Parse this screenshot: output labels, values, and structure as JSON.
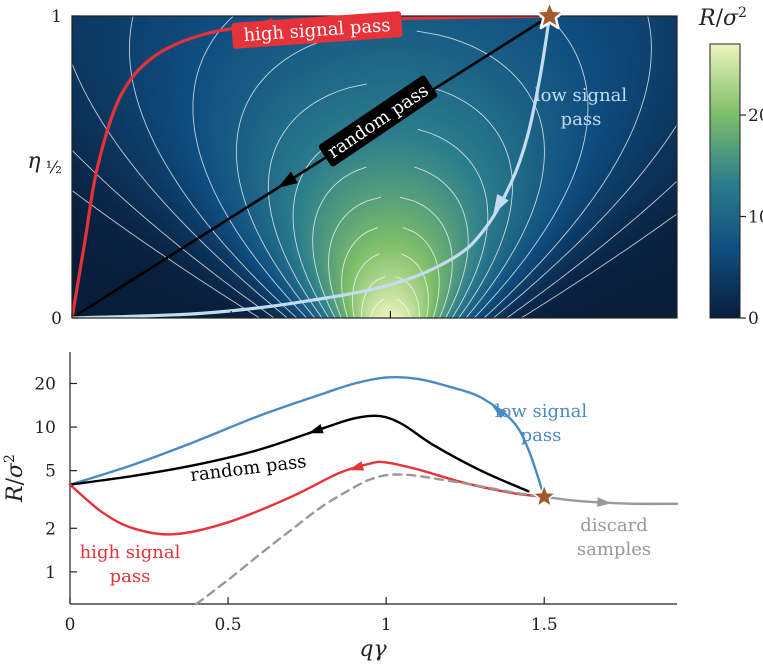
{
  "chart_data": [
    {
      "type": "heatmap",
      "title": "",
      "xlabel": "",
      "ylabel": "η",
      "xlim": [
        0,
        1.9
      ],
      "ylim": [
        0,
        1
      ],
      "x_ticks": [
        0,
        0.5,
        1,
        1.5
      ],
      "y_ticks": [
        {
          "value": 0,
          "label": "0"
        },
        {
          "value": 0.5,
          "label": "½"
        },
        {
          "value": 1,
          "label": "1"
        }
      ],
      "grid": false,
      "colorbar": {
        "label": "R/σ²",
        "range": [
          0,
          27
        ],
        "ticks": [
          0,
          10,
          20
        ],
        "colors": [
          "#081d3a",
          "#0f4d80",
          "#2e7f8d",
          "#7fbf6a",
          "#eef4bf"
        ]
      },
      "peak": {
        "x": 1.0,
        "y": 0.0,
        "value": 27
      },
      "start_point": {
        "x": 1.5,
        "y": 1.0,
        "marker": "star",
        "color": "#a05a2c"
      },
      "paths": [
        {
          "name": "high signal pass",
          "color": "#e63238",
          "points": [
            [
              1.5,
              1.0
            ],
            [
              1.2,
              0.995
            ],
            [
              0.9,
              0.988
            ],
            [
              0.6,
              0.97
            ],
            [
              0.4,
              0.935
            ],
            [
              0.25,
              0.86
            ],
            [
              0.15,
              0.73
            ],
            [
              0.08,
              0.5
            ],
            [
              0.04,
              0.25
            ],
            [
              0.0,
              0.0
            ]
          ]
        },
        {
          "name": "random pass",
          "color": "#000000",
          "points": [
            [
              1.5,
              1.0
            ],
            [
              0.0,
              0.0
            ]
          ]
        },
        {
          "name": "low signal pass",
          "color": "#c3dcf0",
          "points": [
            [
              1.5,
              1.0
            ],
            [
              1.47,
              0.8
            ],
            [
              1.43,
              0.6
            ],
            [
              1.38,
              0.45
            ],
            [
              1.3,
              0.3
            ],
            [
              1.2,
              0.2
            ],
            [
              1.0,
              0.11
            ],
            [
              0.7,
              0.05
            ],
            [
              0.4,
              0.015
            ],
            [
              0.0,
              0.0
            ]
          ]
        }
      ]
    },
    {
      "type": "line",
      "title": "",
      "xlabel": "qγ",
      "ylabel": "R/σ²",
      "xlim": [
        0,
        1.92
      ],
      "ylim": [
        0.6,
        33
      ],
      "yscale": "log",
      "x_ticks": [
        0,
        0.5,
        1,
        1.5
      ],
      "x_tick_labels": [
        "0",
        "0.5",
        "1",
        "1.5"
      ],
      "y_ticks": [
        1,
        2,
        5,
        10,
        20
      ],
      "grid": false,
      "series": [
        {
          "name": "low signal pass",
          "color": "#4a8ac4",
          "x": [
            0,
            0.2,
            0.4,
            0.6,
            0.8,
            0.9,
            1.0,
            1.1,
            1.2,
            1.3,
            1.4,
            1.45,
            1.5
          ],
          "y": [
            4.0,
            5.5,
            8.0,
            12.0,
            17.0,
            20.0,
            22.0,
            21.5,
            19.0,
            16.0,
            11.0,
            7.0,
            3.3
          ]
        },
        {
          "name": "random pass",
          "color": "#000000",
          "x": [
            0,
            0.2,
            0.4,
            0.6,
            0.8,
            0.9,
            0.98,
            1.05,
            1.15,
            1.3,
            1.45
          ],
          "y": [
            4.0,
            4.6,
            5.5,
            7.0,
            9.8,
            11.5,
            11.9,
            10.5,
            7.5,
            5.0,
            3.6
          ]
        },
        {
          "name": "high signal pass",
          "color": "#e63238",
          "x": [
            0,
            0.1,
            0.2,
            0.33,
            0.5,
            0.7,
            0.85,
            0.95,
            1.0,
            1.1,
            1.25,
            1.4,
            1.5
          ],
          "y": [
            4.0,
            2.6,
            2.0,
            1.82,
            2.2,
            3.3,
            4.8,
            5.6,
            5.7,
            5.1,
            4.1,
            3.5,
            3.3
          ]
        },
        {
          "name": "",
          "color": "#999999",
          "dashed": true,
          "x": [
            0.4,
            0.5,
            0.6,
            0.7,
            0.8,
            0.9,
            0.95,
            1.0,
            1.05,
            1.1,
            1.2,
            1.3,
            1.4,
            1.5
          ],
          "y": [
            0.6,
            0.88,
            1.32,
            1.95,
            2.85,
            3.85,
            4.35,
            4.65,
            4.7,
            4.6,
            4.25,
            3.9,
            3.55,
            3.3
          ]
        },
        {
          "name": "discard samples",
          "color": "#999999",
          "x": [
            1.5,
            1.6,
            1.7,
            1.8,
            1.92
          ],
          "y": [
            3.3,
            3.1,
            3.0,
            2.95,
            2.95
          ]
        }
      ],
      "start_point": {
        "x": 1.5,
        "y": 3.3,
        "marker": "star",
        "color": "#a05a2c"
      }
    }
  ]
}
